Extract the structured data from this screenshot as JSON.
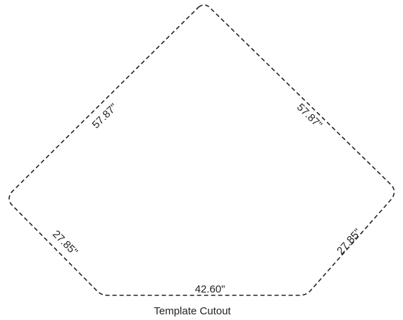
{
  "diagram": {
    "caption": "Template Cutout",
    "dimensions": {
      "upper_left": "57.87\"",
      "upper_right": "57.87\"",
      "lower_left": "27.85\"",
      "lower_right": "27.85\"",
      "bottom": "42.60\""
    },
    "colors": {
      "line": "#222222",
      "background": "#ffffff"
    }
  }
}
